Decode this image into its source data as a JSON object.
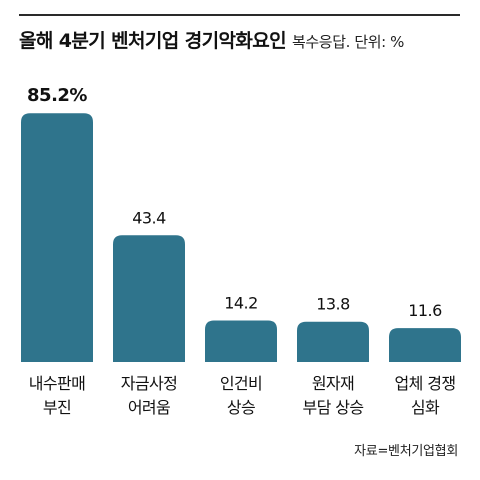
{
  "header": {
    "title": "올해 4분기 벤처기업 경기악화요인",
    "subtitle": "복수응답. 단위: %"
  },
  "source": "자료=벤처기업협회",
  "colors": {
    "bar": "#2f748c",
    "text": "#111111"
  },
  "chart_data": {
    "type": "bar",
    "categories": [
      [
        "내수판매",
        "부진"
      ],
      [
        "자금사정",
        "어려움"
      ],
      [
        "인건비",
        "상승"
      ],
      [
        "원자재",
        "부담 상승"
      ],
      [
        "업체 경쟁",
        "심화"
      ]
    ],
    "value_labels": [
      "85.2%",
      "43.4",
      "14.2",
      "13.8",
      "11.6"
    ],
    "values": [
      85.2,
      43.4,
      14.2,
      13.8,
      11.6
    ],
    "ylim": [
      0,
      100
    ],
    "grid": false,
    "legend": "none"
  }
}
